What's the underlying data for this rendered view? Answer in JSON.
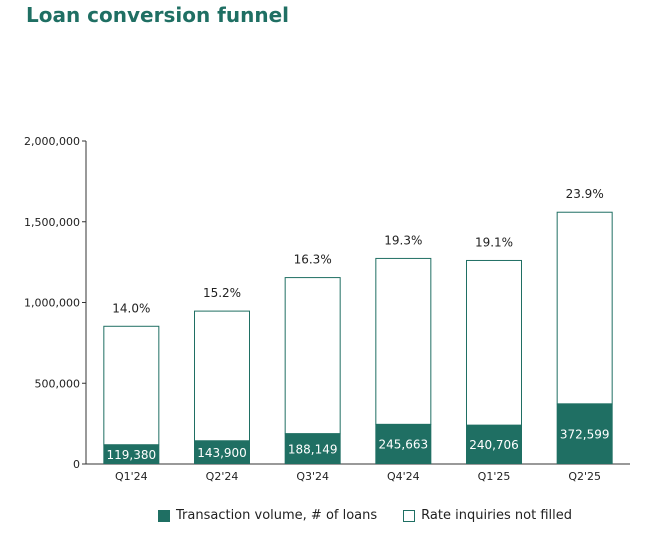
{
  "chart_data": {
    "type": "bar",
    "title": "Loan conversion funnel",
    "categories": [
      "Q1'24",
      "Q2'24",
      "Q3'24",
      "Q4'24",
      "Q1'25",
      "Q2'25"
    ],
    "series": [
      {
        "name": "Transaction volume, # of loans",
        "values": [
          119380,
          143900,
          188149,
          245663,
          240706,
          372599
        ],
        "labels": [
          "119,380",
          "143,900",
          "188,149",
          "245,663",
          "240,706",
          "372,599"
        ],
        "color": "#1f6f63"
      },
      {
        "name": "Rate inquiries not filled",
        "values": [
          733363,
          802816,
          966103,
          1027203,
          1019534,
          1186377
        ],
        "color": "#ffffff"
      }
    ],
    "totals": [
      852743,
      946716,
      1154252,
      1272866,
      1260240,
      1558976
    ],
    "conversion_labels": [
      "14.0%",
      "15.2%",
      "16.3%",
      "19.3%",
      "19.1%",
      "23.9%"
    ],
    "yticks": [
      0,
      500000,
      1000000,
      1500000,
      2000000
    ],
    "ytick_labels": [
      "0",
      "500,000",
      "1,000,000",
      "1,500,000",
      "2,000,000"
    ],
    "ylim": [
      0,
      2000000
    ],
    "xlabel": "",
    "ylabel": "",
    "legend_position": "bottom",
    "grid": false
  }
}
